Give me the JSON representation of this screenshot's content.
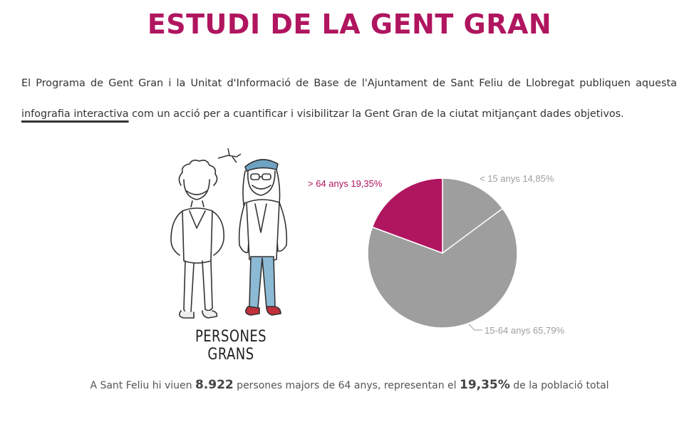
{
  "page": {
    "title": "ESTUDI DE LA GENT GRAN"
  },
  "intro": {
    "text_before_link": "El Programa de Gent Gran i la Unitat d'Informació de Base de l'Ajuntament de Sant Feliu de Llobregat publiquen aquesta ",
    "link_text": "infografia interactiva",
    "text_after_link": " com un acció per a cuantificar i visibilitzar la Gent Gran de la ciutat mitjançant dades objetivos."
  },
  "illustration": {
    "caption": "PERSONES GRANS",
    "icon": "elderly-couple-drawing"
  },
  "chart_data": {
    "type": "pie",
    "title": "",
    "slices": [
      {
        "label": "< 15 anys 14,85%",
        "value": 14.85,
        "color": "#9e9e9e"
      },
      {
        "label": "15-64 anys 65,79%",
        "value": 65.79,
        "color": "#9e9e9e"
      },
      {
        "label": "> 64 anys 19,35%",
        "value": 19.35,
        "color": "#b0155f"
      }
    ],
    "start_angle_deg": 0,
    "direction": "clockwise"
  },
  "summary": {
    "text_1": "A Sant Feliu hi viuen ",
    "number_1": "8.922",
    "text_2": " persones majors de 64 anys, representan el ",
    "number_2": "19,35%",
    "text_3": " de la població total"
  },
  "colors": {
    "accent": "#b0155f",
    "slice_gray": "#9e9e9e",
    "text": "#333333"
  }
}
